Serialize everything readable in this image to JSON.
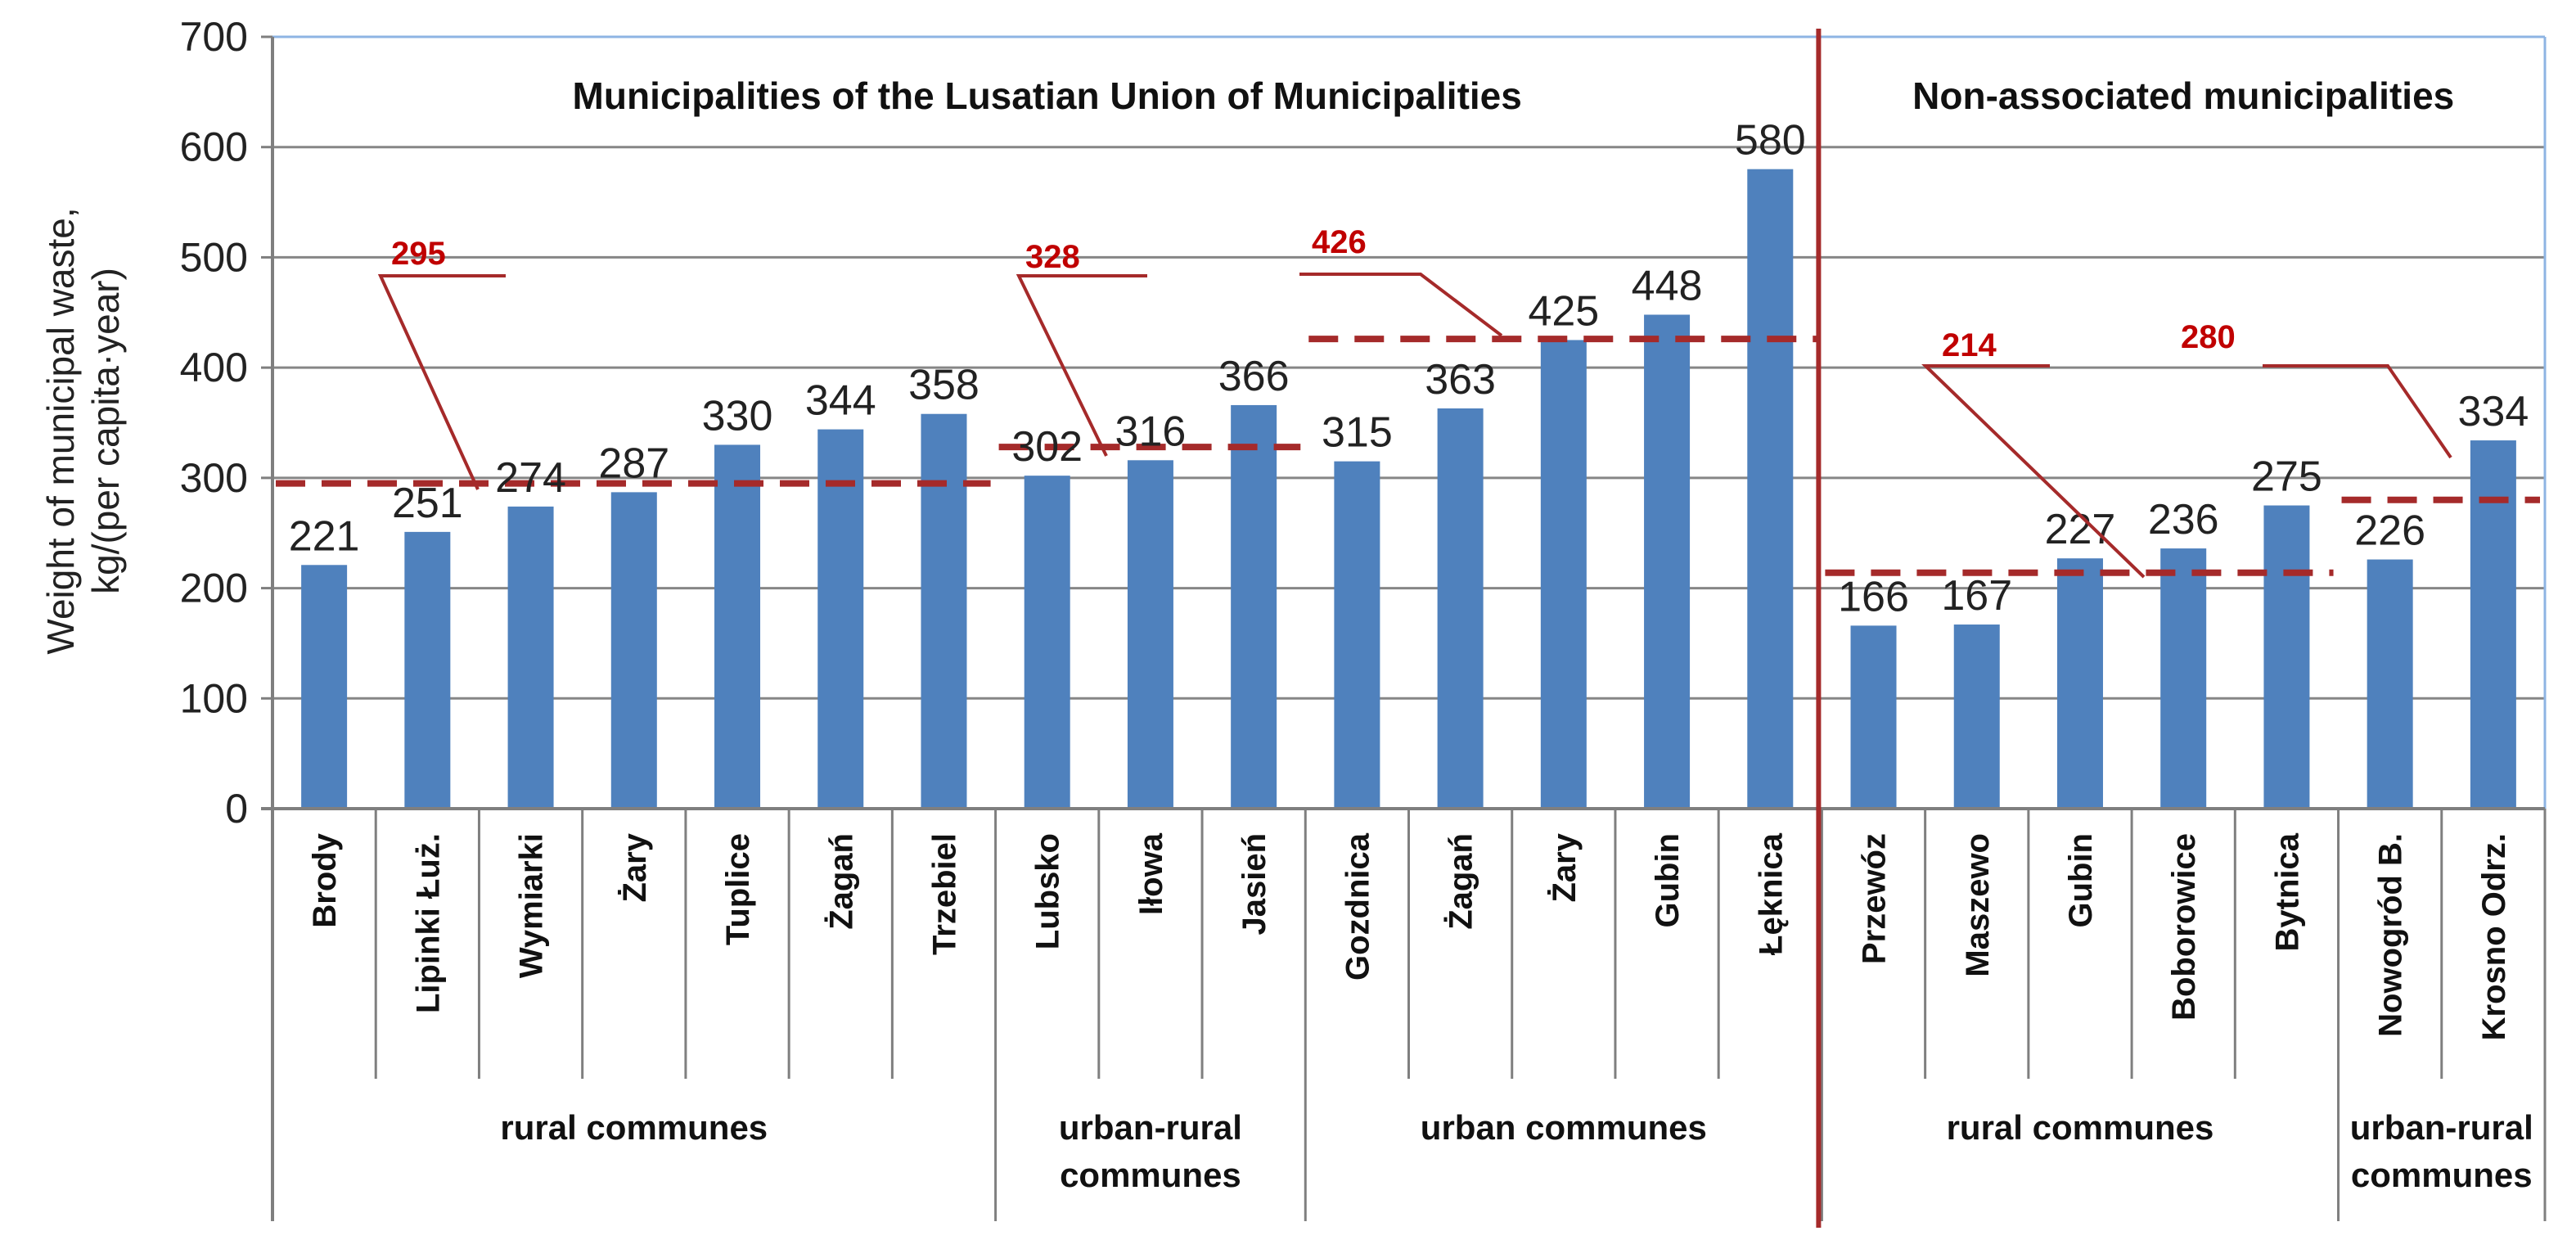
{
  "chart_data": {
    "type": "bar",
    "ylabel_lines": [
      "Weight of municipal waste,",
      "kg/(per capita·year)"
    ],
    "ylim": [
      0,
      700
    ],
    "yticks": [
      0,
      100,
      200,
      300,
      400,
      500,
      600,
      700
    ],
    "bar_color": "#4f81bd",
    "grid": true,
    "sections": [
      {
        "title": "Municipalities of the Lusatian Union of Municipalities",
        "first": 0,
        "last": 14
      },
      {
        "title": "Non-associated municipalities",
        "first": 15,
        "last": 21
      }
    ],
    "groups": [
      {
        "label_lines": [
          "rural communes"
        ],
        "first": 0,
        "last": 6
      },
      {
        "label_lines": [
          "urban-rural",
          "communes"
        ],
        "first": 7,
        "last": 9
      },
      {
        "label_lines": [
          "urban communes"
        ],
        "first": 10,
        "last": 14
      },
      {
        "label_lines": [
          "rural communes"
        ],
        "first": 15,
        "last": 19
      },
      {
        "label_lines": [
          "urban-rural",
          "communes"
        ],
        "first": 20,
        "last": 21
      }
    ],
    "categories": [
      "Brody",
      "Lipinki Łuż.",
      "Wymiarki",
      "Żary",
      "Tuplice",
      "Żagań",
      "Trzebiel",
      "Lubsko",
      "Iłowa",
      "Jasień",
      "Gozdnica",
      "Żagań",
      "Żary",
      "Gubin",
      "Łęknica",
      "Przewóz",
      "Maszewo",
      "Gubin",
      "Boborowice",
      "Bytnica",
      "Nowogród B.",
      "Krosno Odrz."
    ],
    "values": [
      221,
      251,
      274,
      287,
      330,
      344,
      358,
      302,
      316,
      366,
      315,
      363,
      425,
      448,
      580,
      166,
      167,
      227,
      236,
      275,
      226,
      334
    ],
    "averages": [
      {
        "value": 295,
        "label": "295",
        "first": 0,
        "last": 6
      },
      {
        "value": 328,
        "label": "328",
        "first": 7,
        "last": 9
      },
      {
        "value": 426,
        "label": "426",
        "first": 10,
        "last": 14
      },
      {
        "value": 214,
        "label": "214",
        "first": 15,
        "last": 19
      },
      {
        "value": 280,
        "label": "280",
        "first": 20,
        "last": 21
      }
    ],
    "average_color": "#a52a2a",
    "divider_color": "#a52a2a",
    "average_label_color": "#c00000"
  }
}
